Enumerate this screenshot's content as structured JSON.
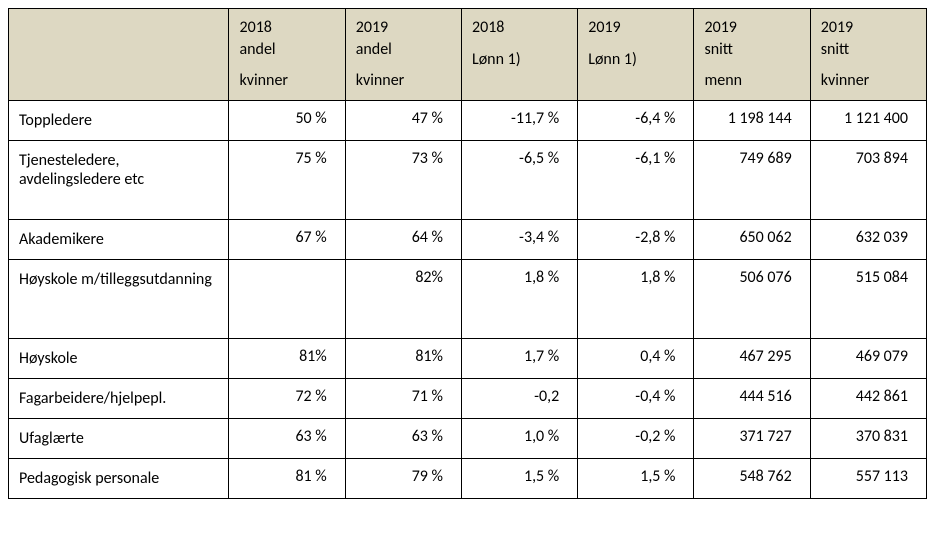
{
  "table": {
    "header_bg": "#ddd8c2",
    "border_color": "#000000",
    "font_family": "Calibri, Arial, sans-serif",
    "font_size_pt": 12,
    "columns": [
      {
        "key": "label",
        "line1": "",
        "line2": "",
        "sub": ""
      },
      {
        "key": "c1",
        "line1": "2018",
        "line2": "andel",
        "sub": "kvinner"
      },
      {
        "key": "c2",
        "line1": "2019",
        "line2": "andel",
        "sub": "kvinner"
      },
      {
        "key": "c3",
        "line1": "2018",
        "line2": "",
        "sub": "Lønn 1)"
      },
      {
        "key": "c4",
        "line1": "2019",
        "line2": "",
        "sub": "Lønn 1)"
      },
      {
        "key": "c5",
        "line1": "2019",
        "line2": "snitt",
        "sub": "menn"
      },
      {
        "key": "c6",
        "line1": "2019",
        "line2": "snitt",
        "sub": "kvinner"
      }
    ],
    "rows": [
      {
        "label": "Toppledere",
        "c1": "50 %",
        "c2": "47 %",
        "c3": "-11,7 %",
        "c4": "-6,4 %",
        "c5": "1 198 144",
        "c6": "1 121 400"
      },
      {
        "label": "Tjenesteledere, avdelingsledere etc",
        "c1": "75 %",
        "c2": "73 %",
        "c3": "-6,5 %",
        "c4": "-6,1 %",
        "c5": "749 689",
        "c6": "703 894",
        "tall": true
      },
      {
        "label": "Akademikere",
        "c1": "67 %",
        "c2": "64 %",
        "c3": "-3,4 %",
        "c4": "-2,8 %",
        "c5": "650 062",
        "c6": "632 039"
      },
      {
        "label": "Høyskole m/tilleggsutdanning",
        "c1": "",
        "c2": "82%",
        "c3": "1,8 %",
        "c4": "1,8 %",
        "c5": "506 076",
        "c6": "515 084",
        "tall": true
      },
      {
        "label": "Høyskole",
        "c1": "81%",
        "c2": "81%",
        "c3": "1,7 %",
        "c4": "0,4 %",
        "c5": "467 295",
        "c6": "469 079"
      },
      {
        "label": "Fagarbeidere/hjelpepl.",
        "c1": "72 %",
        "c2": "71 %",
        "c3": "-0,2",
        "c4": "-0,4 %",
        "c5": "444 516",
        "c6": "442 861"
      },
      {
        "label": "Ufaglærte",
        "c1": "63 %",
        "c2": "63 %",
        "c3": "1,0 %",
        "c4": "-0,2 %",
        "c5": "371 727",
        "c6": "370 831"
      },
      {
        "label": "Pedagogisk personale",
        "c1": "81 %",
        "c2": "79 %",
        "c3": "1,5 %",
        "c4": "1,5 %",
        "c5": "548 762",
        "c6": "557 113"
      }
    ]
  }
}
